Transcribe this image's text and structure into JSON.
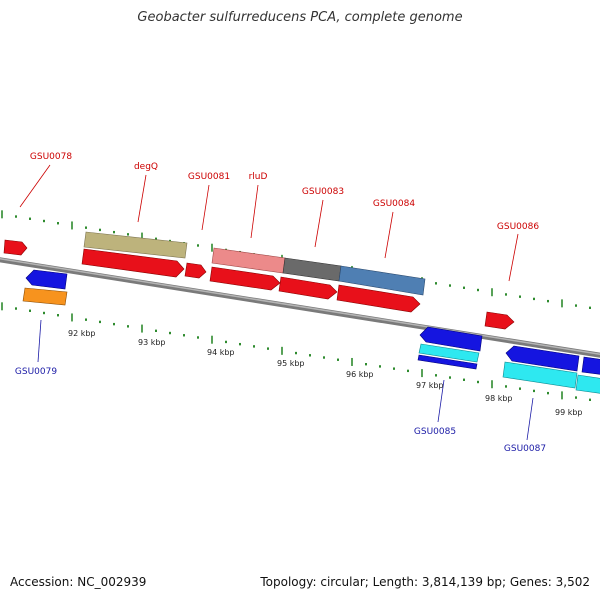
{
  "title": "Geobacter sulfurreducens PCA, complete genome",
  "footer": {
    "accession": "Accession: NC_002939",
    "summary": "Topology: circular; Length: 3,814,139 bp; Genes: 3,502"
  },
  "colors": {
    "backbone": "#8a8a8a",
    "tick": "#2e8b2e",
    "label_top": "#cc0000",
    "label_bottom": "#1a1aa6"
  },
  "kbp_labels": [
    "92 kbp",
    "93 kbp",
    "94 kbp",
    "95 kbp",
    "96 kbp",
    "97 kbp",
    "98 kbp",
    "99 kbp"
  ],
  "gene_labels_top": [
    "GSU0078",
    "degQ",
    "GSU0081",
    "rluD",
    "GSU0083",
    "GSU0084",
    "GSU0086"
  ],
  "gene_labels_bottom": [
    "GSU0079",
    "GSU0085",
    "GSU0087"
  ]
}
